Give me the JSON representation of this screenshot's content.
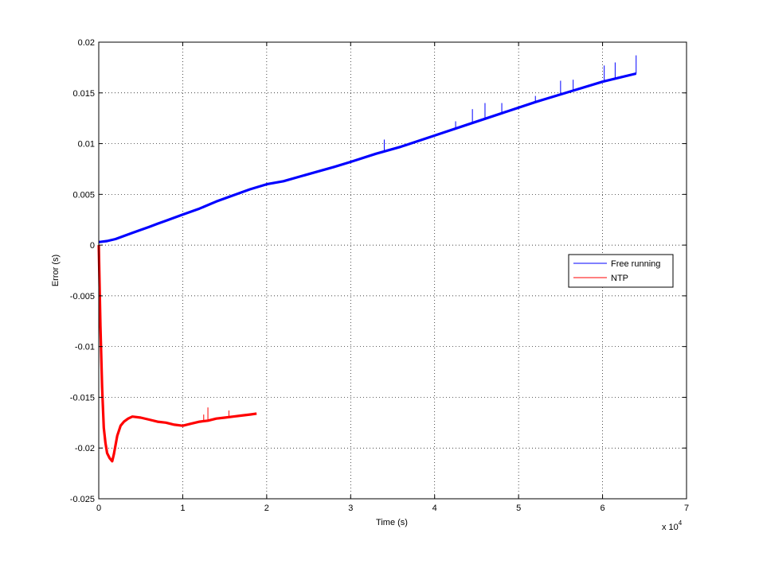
{
  "chart_data": {
    "type": "line",
    "title": "",
    "xlabel": "Time (s)",
    "ylabel": "Error (s)",
    "x_multiplier_label": "x 10",
    "x_multiplier_exponent": "4",
    "xlim": [
      0,
      70000
    ],
    "ylim": [
      -0.025,
      0.02
    ],
    "grid": true,
    "legend_position": "right-center",
    "x_tick_values": [
      0,
      10000,
      20000,
      30000,
      40000,
      50000,
      60000,
      70000
    ],
    "x_tick_labels": [
      "0",
      "1",
      "2",
      "3",
      "4",
      "5",
      "6",
      "7"
    ],
    "y_tick_values": [
      -0.025,
      -0.02,
      -0.015,
      -0.01,
      -0.005,
      0,
      0.005,
      0.01,
      0.015,
      0.02
    ],
    "y_tick_labels": [
      "-0.025",
      "-0.02",
      "-0.015",
      "-0.01",
      "-0.005",
      "0",
      "0.005",
      "0.01",
      "0.015",
      "0.02"
    ],
    "series": [
      {
        "name": "Free running",
        "color": "#0000ff",
        "x": [
          0,
          1000,
          2000,
          3000,
          4000,
          5000,
          6000,
          7000,
          8000,
          10000,
          12000,
          14000,
          16000,
          18000,
          20000,
          22000,
          25000,
          28000,
          30000,
          33000,
          36000,
          40000,
          44000,
          48000,
          52000,
          56000,
          60000,
          62000,
          64000
        ],
        "y": [
          0.0003,
          0.0004,
          0.0006,
          0.0009,
          0.0012,
          0.0015,
          0.0018,
          0.0021,
          0.0024,
          0.003,
          0.0036,
          0.0043,
          0.0049,
          0.0055,
          0.006,
          0.0063,
          0.007,
          0.0077,
          0.0082,
          0.009,
          0.0097,
          0.0108,
          0.0119,
          0.013,
          0.0141,
          0.0151,
          0.0161,
          0.0165,
          0.0169
        ]
      },
      {
        "name": "NTP",
        "color": "#ff0000",
        "x": [
          0,
          200,
          400,
          600,
          800,
          1000,
          1300,
          1600,
          1800,
          2200,
          2600,
          3000,
          3500,
          4000,
          5000,
          6000,
          7000,
          8000,
          9000,
          10000,
          11000,
          12000,
          13000,
          14000,
          15000,
          16000,
          17000,
          18000,
          18800
        ],
        "y": [
          0.0,
          -0.008,
          -0.014,
          -0.018,
          -0.0195,
          -0.0205,
          -0.021,
          -0.0213,
          -0.0206,
          -0.0188,
          -0.0178,
          -0.0174,
          -0.0171,
          -0.0169,
          -0.017,
          -0.0172,
          -0.0174,
          -0.0175,
          -0.0177,
          -0.0178,
          -0.0176,
          -0.0174,
          -0.0173,
          -0.0171,
          -0.017,
          -0.0169,
          -0.0168,
          -0.0167,
          -0.0166
        ]
      }
    ],
    "spikes": [
      {
        "series": 0,
        "x": 34000,
        "y": 0.0104
      },
      {
        "series": 0,
        "x": 42500,
        "y": 0.0122
      },
      {
        "series": 0,
        "x": 44500,
        "y": 0.0134
      },
      {
        "series": 0,
        "x": 46000,
        "y": 0.014
      },
      {
        "series": 0,
        "x": 48000,
        "y": 0.014
      },
      {
        "series": 0,
        "x": 52000,
        "y": 0.0147
      },
      {
        "series": 0,
        "x": 55000,
        "y": 0.0162
      },
      {
        "series": 0,
        "x": 56500,
        "y": 0.0163
      },
      {
        "series": 0,
        "x": 60200,
        "y": 0.0177
      },
      {
        "series": 0,
        "x": 61500,
        "y": 0.018
      },
      {
        "series": 0,
        "x": 64000,
        "y": 0.0187
      },
      {
        "series": 1,
        "x": 12500,
        "y": -0.0167
      },
      {
        "series": 1,
        "x": 13000,
        "y": -0.016
      },
      {
        "series": 1,
        "x": 15500,
        "y": -0.0163
      }
    ]
  }
}
